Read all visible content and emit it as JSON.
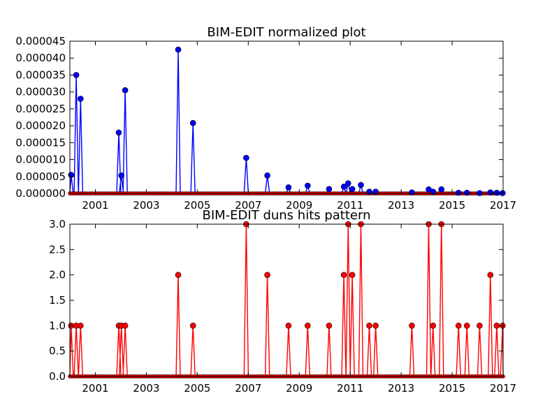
{
  "chart_data": [
    {
      "type": "line",
      "title": "BIM-EDIT normalized plot",
      "xlabel": "",
      "ylabel": "",
      "xlim": [
        2000.0,
        2017.0
      ],
      "ylim": [
        0,
        4.5e-05
      ],
      "x_ticks": [
        "2001",
        "2003",
        "2005",
        "2007",
        "2009",
        "2011",
        "2013",
        "2015",
        "2017"
      ],
      "y_ticks": [
        "0.000000",
        "0.000005",
        "0.000010",
        "0.000015",
        "0.000020",
        "0.000025",
        "0.000030",
        "0.000035",
        "0.000040",
        "0.000045"
      ],
      "grid": false,
      "colors": {
        "primary": "#0000ff",
        "secondary": "#ff0000"
      },
      "series": [
        {
          "color": "#0000ff",
          "marker": "circle",
          "points": [
            [
              2000.05,
              5.5e-06
            ],
            [
              2000.25,
              3.5e-05
            ],
            [
              2000.42,
              2.8e-05
            ],
            [
              2001.92,
              1.8e-05
            ],
            [
              2002.02,
              5.3e-06
            ],
            [
              2002.17,
              3.05e-05
            ],
            [
              2004.25,
              4.25e-05
            ],
            [
              2004.83,
              2.08e-05
            ],
            [
              2006.92,
              1.05e-05
            ],
            [
              2007.75,
              5.3e-06
            ],
            [
              2008.58,
              1.8e-06
            ],
            [
              2009.33,
              2.3e-06
            ],
            [
              2010.17,
              1.3e-06
            ],
            [
              2010.75,
              2e-06
            ],
            [
              2010.92,
              3e-06
            ],
            [
              2011.08,
              1.3e-06
            ],
            [
              2011.42,
              2.5e-06
            ],
            [
              2011.75,
              5e-07
            ],
            [
              2012.0,
              5e-07
            ],
            [
              2013.42,
              3e-07
            ],
            [
              2014.08,
              1.2e-06
            ],
            [
              2014.25,
              5e-07
            ],
            [
              2014.58,
              1.2e-06
            ],
            [
              2015.25,
              2e-07
            ],
            [
              2015.58,
              2e-07
            ],
            [
              2016.08,
              1e-07
            ],
            [
              2016.5,
              3e-07
            ],
            [
              2016.75,
              2e-07
            ],
            [
              2016.98,
              1e-07
            ]
          ],
          "baseline_color": "#ff0000"
        }
      ]
    },
    {
      "type": "line",
      "title": "BIM-EDIT duns hits pattern",
      "xlabel": "",
      "ylabel": "",
      "xlim": [
        2000.0,
        2017.0
      ],
      "ylim": [
        0,
        3.0
      ],
      "x_ticks": [
        "2001",
        "2003",
        "2005",
        "2007",
        "2009",
        "2011",
        "2013",
        "2015",
        "2017"
      ],
      "y_ticks": [
        "0.0",
        "0.5",
        "1.0",
        "1.5",
        "2.0",
        "2.5",
        "3.0"
      ],
      "grid": false,
      "series": [
        {
          "color": "#ff0000",
          "marker": "circle",
          "points": [
            [
              2000.05,
              1
            ],
            [
              2000.25,
              1
            ],
            [
              2000.42,
              1
            ],
            [
              2001.92,
              1
            ],
            [
              2002.02,
              1
            ],
            [
              2002.17,
              1
            ],
            [
              2004.25,
              2
            ],
            [
              2004.83,
              1
            ],
            [
              2006.92,
              3
            ],
            [
              2007.75,
              2
            ],
            [
              2008.58,
              1
            ],
            [
              2009.33,
              1
            ],
            [
              2010.17,
              1
            ],
            [
              2010.75,
              2
            ],
            [
              2010.92,
              3
            ],
            [
              2011.08,
              2
            ],
            [
              2011.42,
              3
            ],
            [
              2011.75,
              1
            ],
            [
              2012.0,
              1
            ],
            [
              2013.42,
              1
            ],
            [
              2014.08,
              3
            ],
            [
              2014.25,
              1
            ],
            [
              2014.58,
              3
            ],
            [
              2015.25,
              1
            ],
            [
              2015.58,
              1
            ],
            [
              2016.08,
              1
            ],
            [
              2016.5,
              2
            ],
            [
              2016.75,
              1
            ],
            [
              2016.98,
              1
            ]
          ]
        }
      ]
    }
  ]
}
